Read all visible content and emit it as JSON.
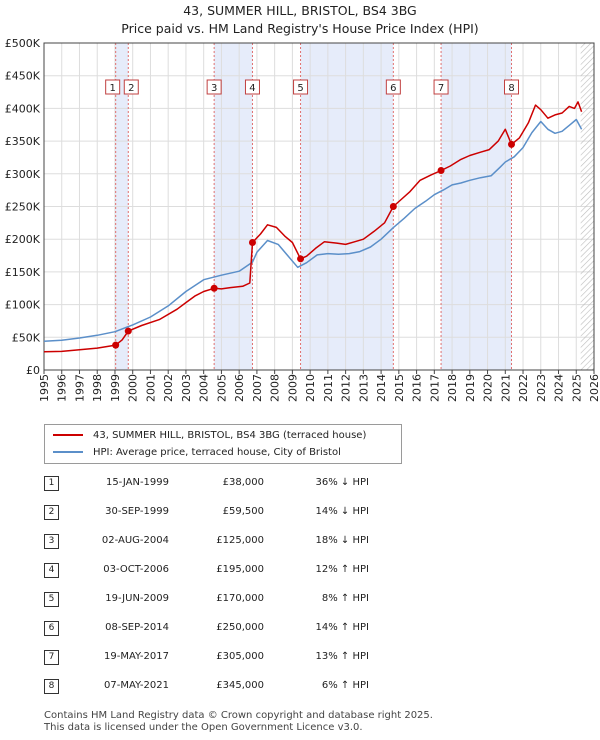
{
  "title": "43, SUMMER HILL, BRISTOL, BS4 3BG",
  "subtitle": "Price paid vs. HM Land Registry's House Price Index (HPI)",
  "colors": {
    "price": "#cc0000",
    "hpi": "#5b8fc9",
    "shade": "#e6ecfa",
    "vline": "#e07070",
    "grid": "#dddddd"
  },
  "chart_data": {
    "type": "line",
    "title": "43, SUMMER HILL, BRISTOL, BS4 3BG",
    "xlim": [
      1995,
      2026
    ],
    "ylim": [
      0,
      500000
    ],
    "y_ticks": [
      {
        "v": 0,
        "label": "£0"
      },
      {
        "v": 50000,
        "label": "£50K"
      },
      {
        "v": 100000,
        "label": "£100K"
      },
      {
        "v": 150000,
        "label": "£150K"
      },
      {
        "v": 200000,
        "label": "£200K"
      },
      {
        "v": 250000,
        "label": "£250K"
      },
      {
        "v": 300000,
        "label": "£300K"
      },
      {
        "v": 350000,
        "label": "£350K"
      },
      {
        "v": 400000,
        "label": "£400K"
      },
      {
        "v": 450000,
        "label": "£450K"
      },
      {
        "v": 500000,
        "label": "£500K"
      }
    ],
    "x_ticks": [
      "1995",
      "1996",
      "1997",
      "1998",
      "1999",
      "2000",
      "2001",
      "2002",
      "2003",
      "2004",
      "2005",
      "2006",
      "2007",
      "2008",
      "2009",
      "2010",
      "2011",
      "2012",
      "2013",
      "2014",
      "2015",
      "2016",
      "2017",
      "2018",
      "2019",
      "2020",
      "2021",
      "2022",
      "2023",
      "2024",
      "2025",
      "2026"
    ],
    "shaded_ranges": [
      [
        1999.04,
        1999.75
      ],
      [
        2004.59,
        2006.75
      ],
      [
        2009.46,
        2014.69
      ],
      [
        2017.38,
        2021.35
      ]
    ],
    "forecast_start": 2025.25,
    "series": [
      {
        "name": "43, SUMMER HILL, BRISTOL, BS4 3BG (terraced house)",
        "points": [
          [
            1995.0,
            28000
          ],
          [
            1996.0,
            28500
          ],
          [
            1997.0,
            31000
          ],
          [
            1998.0,
            33500
          ],
          [
            1999.04,
            38000
          ],
          [
            1999.4,
            46000
          ],
          [
            1999.75,
            59500
          ],
          [
            2000.5,
            68000
          ],
          [
            2001.5,
            77000
          ],
          [
            2002.5,
            93000
          ],
          [
            2003.0,
            103000
          ],
          [
            2003.5,
            113000
          ],
          [
            2004.0,
            120000
          ],
          [
            2004.59,
            125000
          ],
          [
            2005.0,
            124000
          ],
          [
            2005.5,
            126000
          ],
          [
            2006.2,
            128000
          ],
          [
            2006.6,
            133000
          ],
          [
            2006.75,
            195000
          ],
          [
            2007.2,
            208000
          ],
          [
            2007.6,
            222000
          ],
          [
            2008.1,
            218000
          ],
          [
            2008.6,
            204000
          ],
          [
            2009.0,
            195000
          ],
          [
            2009.46,
            170000
          ],
          [
            2009.8,
            174000
          ],
          [
            2010.3,
            186000
          ],
          [
            2010.8,
            196000
          ],
          [
            2011.5,
            194000
          ],
          [
            2012.0,
            192000
          ],
          [
            2012.5,
            196000
          ],
          [
            2013.0,
            200000
          ],
          [
            2013.6,
            212000
          ],
          [
            2014.2,
            225000
          ],
          [
            2014.69,
            250000
          ],
          [
            2015.1,
            260000
          ],
          [
            2015.6,
            272000
          ],
          [
            2016.2,
            290000
          ],
          [
            2016.8,
            298000
          ],
          [
            2017.38,
            305000
          ],
          [
            2017.9,
            312000
          ],
          [
            2018.5,
            322000
          ],
          [
            2019.0,
            328000
          ],
          [
            2019.6,
            333000
          ],
          [
            2020.1,
            337000
          ],
          [
            2020.6,
            350000
          ],
          [
            2021.0,
            368000
          ],
          [
            2021.35,
            345000
          ],
          [
            2021.8,
            355000
          ],
          [
            2022.3,
            378000
          ],
          [
            2022.7,
            405000
          ],
          [
            2023.0,
            398000
          ],
          [
            2023.4,
            385000
          ],
          [
            2023.8,
            390000
          ],
          [
            2024.2,
            393000
          ],
          [
            2024.6,
            403000
          ],
          [
            2024.9,
            400000
          ],
          [
            2025.1,
            410000
          ],
          [
            2025.3,
            395000
          ]
        ]
      },
      {
        "name": "HPI: Average price, terraced house, City of Bristol",
        "points": [
          [
            1995.0,
            44000
          ],
          [
            1996.0,
            45500
          ],
          [
            1997.0,
            49000
          ],
          [
            1998.0,
            53000
          ],
          [
            1999.0,
            58500
          ],
          [
            2000.0,
            69000
          ],
          [
            2001.0,
            81000
          ],
          [
            2002.0,
            98000
          ],
          [
            2003.0,
            120000
          ],
          [
            2004.0,
            138000
          ],
          [
            2005.0,
            145000
          ],
          [
            2006.0,
            151000
          ],
          [
            2006.75,
            165000
          ],
          [
            2007.0,
            180000
          ],
          [
            2007.6,
            198000
          ],
          [
            2008.2,
            192000
          ],
          [
            2008.7,
            176000
          ],
          [
            2009.3,
            157000
          ],
          [
            2009.8,
            164000
          ],
          [
            2010.4,
            176000
          ],
          [
            2011.0,
            178000
          ],
          [
            2011.6,
            177000
          ],
          [
            2012.2,
            178000
          ],
          [
            2012.8,
            181000
          ],
          [
            2013.4,
            188000
          ],
          [
            2014.0,
            200000
          ],
          [
            2014.7,
            218000
          ],
          [
            2015.3,
            232000
          ],
          [
            2015.9,
            247000
          ],
          [
            2016.5,
            258000
          ],
          [
            2017.0,
            268000
          ],
          [
            2017.5,
            275000
          ],
          [
            2018.0,
            283000
          ],
          [
            2018.5,
            286000
          ],
          [
            2019.0,
            290000
          ],
          [
            2019.6,
            294000
          ],
          [
            2020.2,
            297000
          ],
          [
            2020.7,
            310000
          ],
          [
            2021.0,
            318000
          ],
          [
            2021.5,
            326000
          ],
          [
            2022.0,
            340000
          ],
          [
            2022.5,
            363000
          ],
          [
            2023.0,
            380000
          ],
          [
            2023.4,
            368000
          ],
          [
            2023.8,
            362000
          ],
          [
            2024.2,
            365000
          ],
          [
            2024.6,
            374000
          ],
          [
            2025.0,
            383000
          ],
          [
            2025.3,
            368000
          ]
        ]
      }
    ],
    "sale_markers": [
      {
        "id": "1",
        "x": 1999.04,
        "y": 38000
      },
      {
        "id": "2",
        "x": 1999.75,
        "y": 59500
      },
      {
        "id": "3",
        "x": 2004.59,
        "y": 125000
      },
      {
        "id": "4",
        "x": 2006.75,
        "y": 195000
      },
      {
        "id": "5",
        "x": 2009.46,
        "y": 170000
      },
      {
        "id": "6",
        "x": 2014.69,
        "y": 250000
      },
      {
        "id": "7",
        "x": 2017.38,
        "y": 305000
      },
      {
        "id": "8",
        "x": 2021.35,
        "y": 345000
      }
    ]
  },
  "legend": {
    "price_label": "43, SUMMER HILL, BRISTOL, BS4 3BG (terraced house)",
    "hpi_label": "HPI: Average price, terraced house, City of Bristol"
  },
  "sales": [
    {
      "num": "1",
      "date": "15-JAN-1999",
      "price": "£38,000",
      "hpi": "36% ↓ HPI"
    },
    {
      "num": "2",
      "date": "30-SEP-1999",
      "price": "£59,500",
      "hpi": "14% ↓ HPI"
    },
    {
      "num": "3",
      "date": "02-AUG-2004",
      "price": "£125,000",
      "hpi": "18% ↓ HPI"
    },
    {
      "num": "4",
      "date": "03-OCT-2006",
      "price": "£195,000",
      "hpi": "12% ↑ HPI"
    },
    {
      "num": "5",
      "date": "19-JUN-2009",
      "price": "£170,000",
      "hpi": "8% ↑ HPI"
    },
    {
      "num": "6",
      "date": "08-SEP-2014",
      "price": "£250,000",
      "hpi": "14% ↑ HPI"
    },
    {
      "num": "7",
      "date": "19-MAY-2017",
      "price": "£305,000",
      "hpi": "13% ↑ HPI"
    },
    {
      "num": "8",
      "date": "07-MAY-2021",
      "price": "£345,000",
      "hpi": "6% ↑ HPI"
    }
  ],
  "footer": {
    "line1": "Contains HM Land Registry data © Crown copyright and database right 2025.",
    "line2": "This data is licensed under the Open Government Licence v3.0."
  }
}
